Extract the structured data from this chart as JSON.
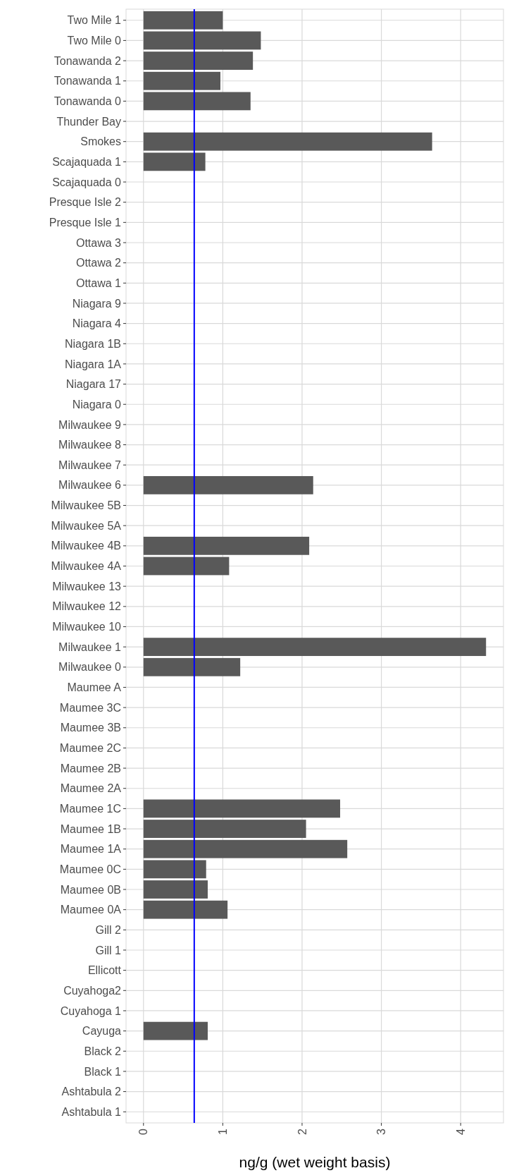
{
  "chart_data": {
    "type": "bar",
    "orientation": "horizontal",
    "xlabel": "ng/g (wet weight basis)",
    "categories": [
      "Two Mile 1",
      "Two Mile 0",
      "Tonawanda 2",
      "Tonawanda 1",
      "Tonawanda 0",
      "Thunder Bay",
      "Smokes",
      "Scajaquada 1",
      "Scajaquada 0",
      "Presque Isle 2",
      "Presque Isle 1",
      "Ottawa 3",
      "Ottawa 2",
      "Ottawa 1",
      "Niagara 9",
      "Niagara 4",
      "Niagara 1B",
      "Niagara 1A",
      "Niagara 17",
      "Niagara 0",
      "Milwaukee 9",
      "Milwaukee 8",
      "Milwaukee 7",
      "Milwaukee 6",
      "Milwaukee 5B",
      "Milwaukee 5A",
      "Milwaukee 4B",
      "Milwaukee 4A",
      "Milwaukee 13",
      "Milwaukee 12",
      "Milwaukee 10",
      "Milwaukee 1",
      "Milwaukee 0",
      "Maumee A",
      "Maumee 3C",
      "Maumee 3B",
      "Maumee 2C",
      "Maumee 2B",
      "Maumee 2A",
      "Maumee 1C",
      "Maumee 1B",
      "Maumee 1A",
      "Maumee 0C",
      "Maumee 0B",
      "Maumee 0A",
      "Gill 2",
      "Gill 1",
      "Ellicott",
      "Cuyahoga2",
      "Cuyahoga 1",
      "Cayuga",
      "Black 2",
      "Black 1",
      "Ashtabula 2",
      "Ashtabula 1"
    ],
    "values": [
      1.0,
      1.48,
      1.38,
      0.97,
      1.35,
      null,
      3.64,
      0.78,
      null,
      null,
      null,
      null,
      null,
      null,
      null,
      null,
      null,
      null,
      null,
      null,
      null,
      null,
      null,
      2.14,
      null,
      null,
      2.09,
      1.08,
      null,
      null,
      null,
      4.32,
      1.22,
      null,
      null,
      null,
      null,
      null,
      null,
      2.48,
      2.05,
      2.57,
      0.79,
      0.81,
      1.06,
      null,
      null,
      null,
      null,
      null,
      0.81,
      null,
      null,
      null,
      null
    ],
    "color": "#595959",
    "xlim": [
      -0.22,
      4.54
    ],
    "xticks": [
      0,
      1,
      2,
      3,
      4
    ],
    "grid": true,
    "ref_lines": [
      {
        "axis": "x",
        "value": 0.64,
        "color": "#0000ff"
      }
    ]
  }
}
